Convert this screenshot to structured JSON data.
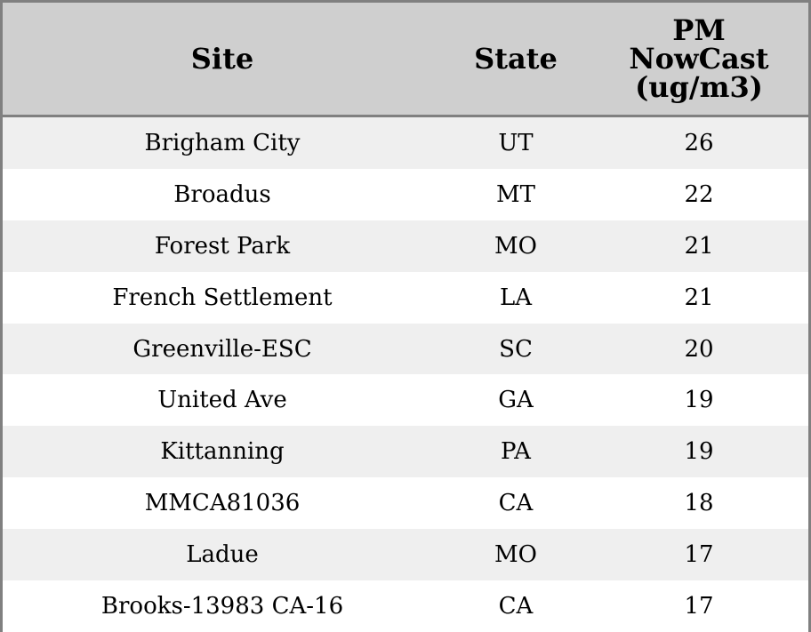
{
  "chart_data": {
    "type": "table",
    "columns": [
      "Site",
      "State",
      "PM NowCast (ug/m3)"
    ],
    "header_lines": {
      "site": "Site",
      "state": "State",
      "pm_line1": "PM",
      "pm_line2": "NowCast",
      "pm_line3": "(ug/m3)"
    },
    "rows": [
      {
        "site": "Brigham City",
        "state": "UT",
        "pm": 26
      },
      {
        "site": "Broadus",
        "state": "MT",
        "pm": 22
      },
      {
        "site": "Forest Park",
        "state": "MO",
        "pm": 21
      },
      {
        "site": "French Settlement",
        "state": "LA",
        "pm": 21
      },
      {
        "site": "Greenville-ESC",
        "state": "SC",
        "pm": 20
      },
      {
        "site": "United Ave",
        "state": "GA",
        "pm": 19
      },
      {
        "site": "Kittanning",
        "state": "PA",
        "pm": 19
      },
      {
        "site": "MMCA81036",
        "state": "CA",
        "pm": 18
      },
      {
        "site": "Ladue",
        "state": "MO",
        "pm": 17
      },
      {
        "site": "Brooks-13983 CA-16",
        "state": "CA",
        "pm": 17
      }
    ]
  },
  "colors": {
    "header_bg": "#cfcfcf",
    "row_alt_bg": "#efefef",
    "row_bg": "#ffffff",
    "border": "#808080"
  }
}
